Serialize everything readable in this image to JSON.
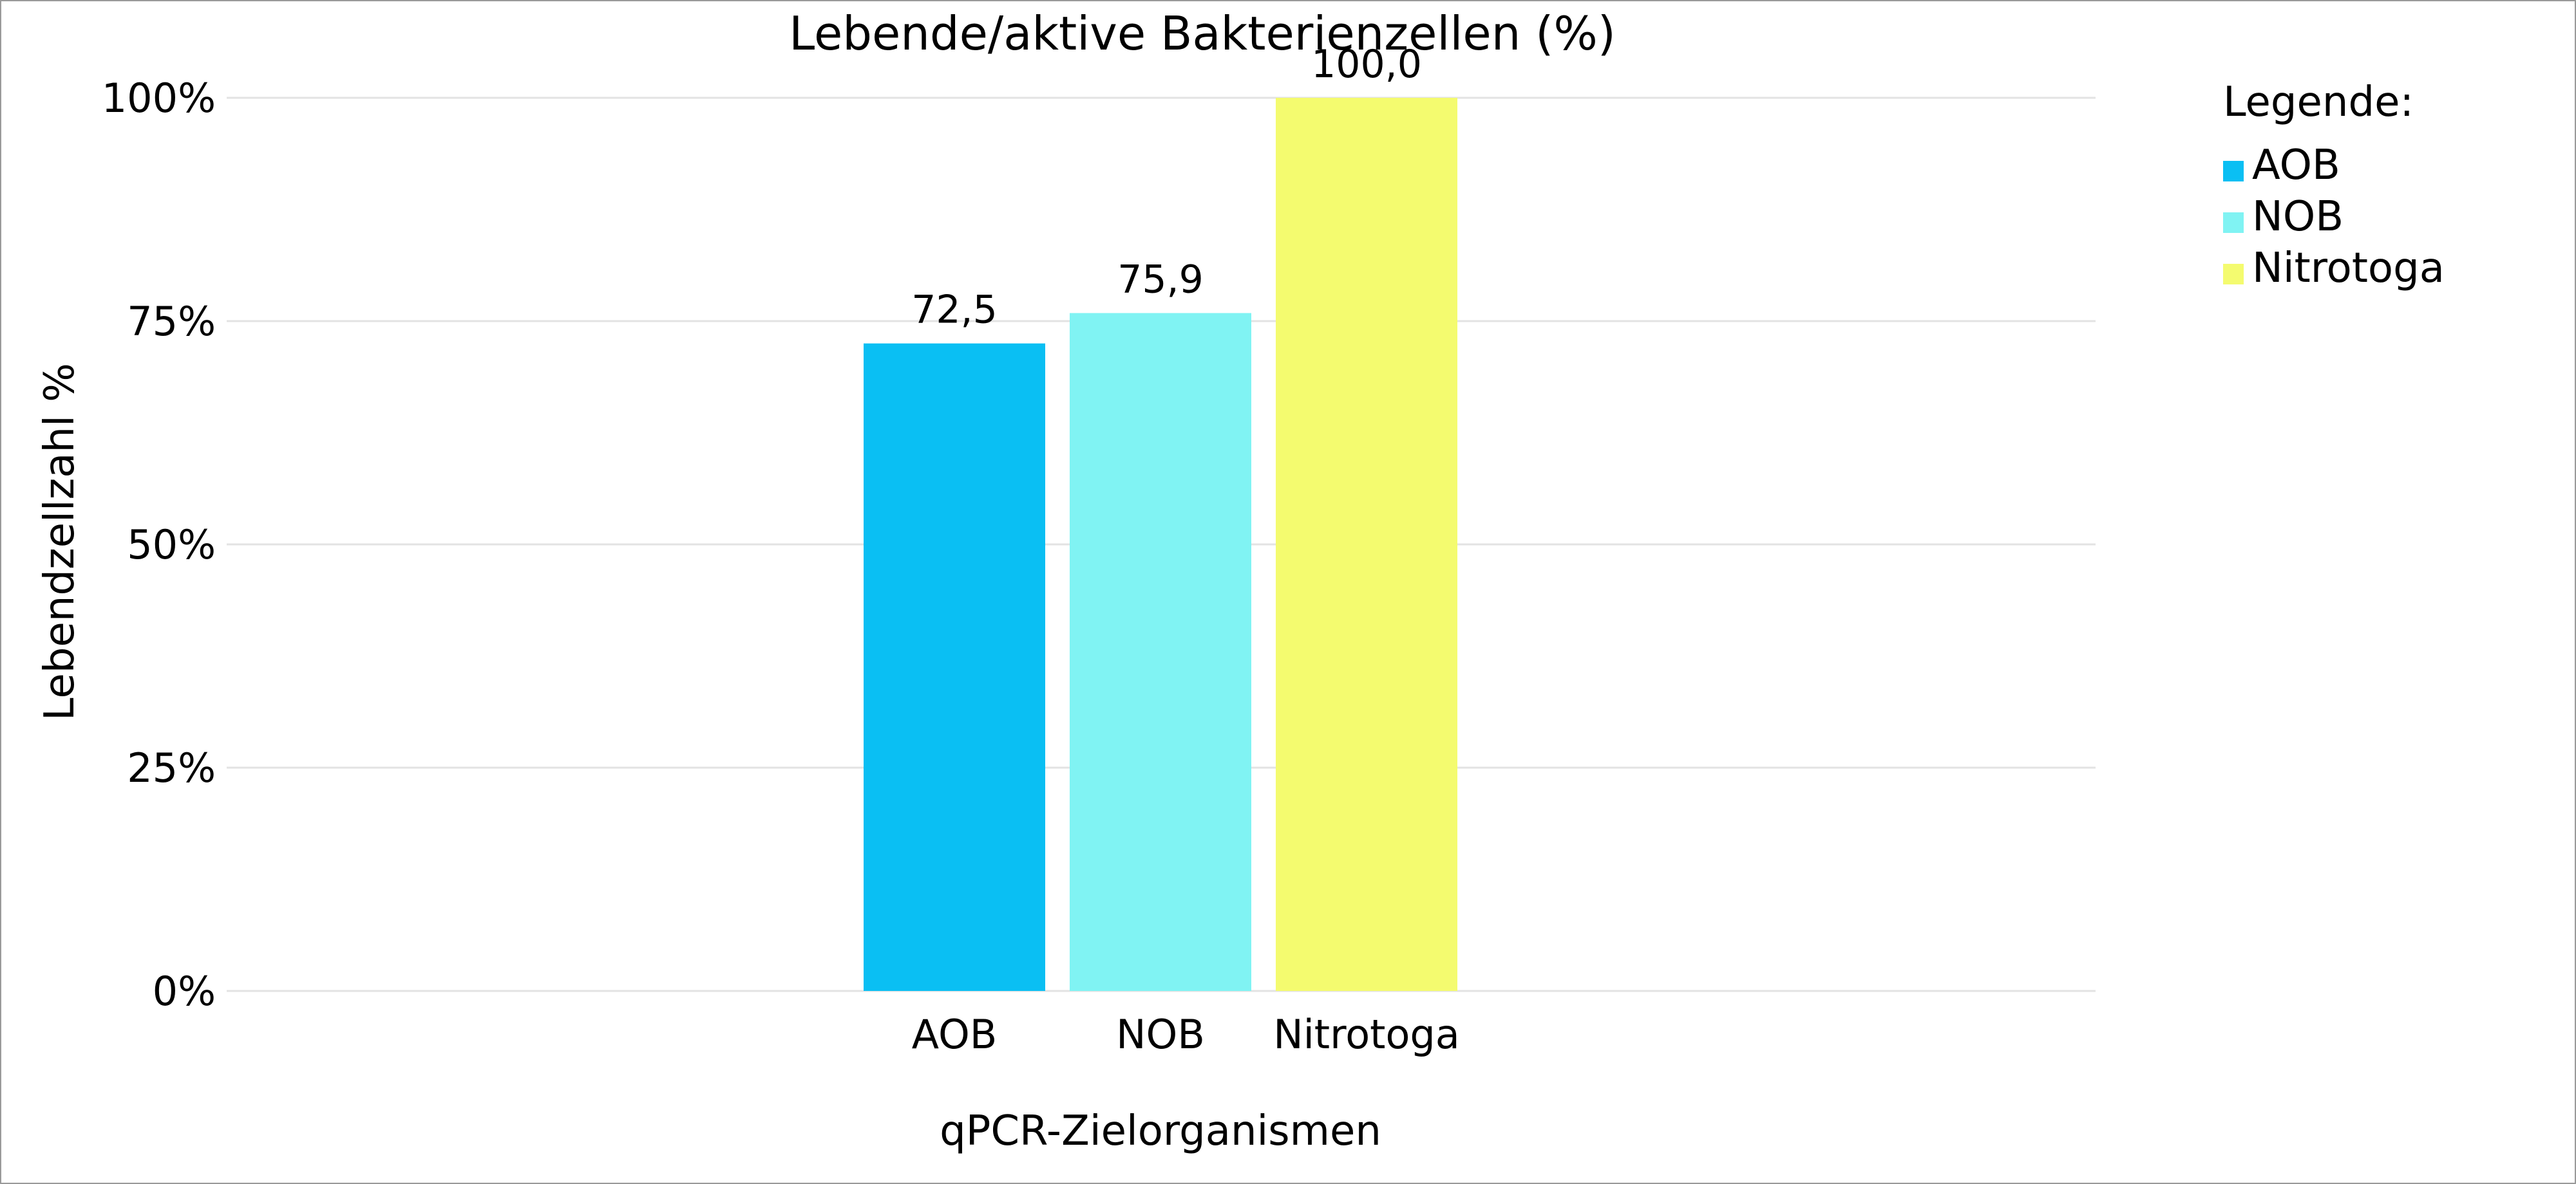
{
  "chart_data": {
    "type": "bar",
    "title": "Lebende/aktive Bakterienzellen (%)",
    "xlabel": "qPCR-Zielorganismen",
    "ylabel": "Lebendzellzahl %",
    "categories": [
      "AOB",
      "NOB",
      "Nitrotoga"
    ],
    "values": [
      72.5,
      75.9,
      100.0
    ],
    "data_labels": [
      "72,5",
      "75,9",
      "100,0"
    ],
    "colors": [
      "#0abff3",
      "#80f3f3",
      "#f4fb6f"
    ],
    "ylim": [
      0,
      100
    ],
    "yticks": [
      0,
      25,
      50,
      75,
      100
    ],
    "ytick_labels": [
      "0%",
      "25%",
      "50%",
      "75%",
      "100%"
    ],
    "grid": true,
    "legend": {
      "title": "Legende:",
      "placement": "top-right",
      "entries": [
        "AOB",
        "NOB",
        "Nitrotoga"
      ]
    }
  }
}
